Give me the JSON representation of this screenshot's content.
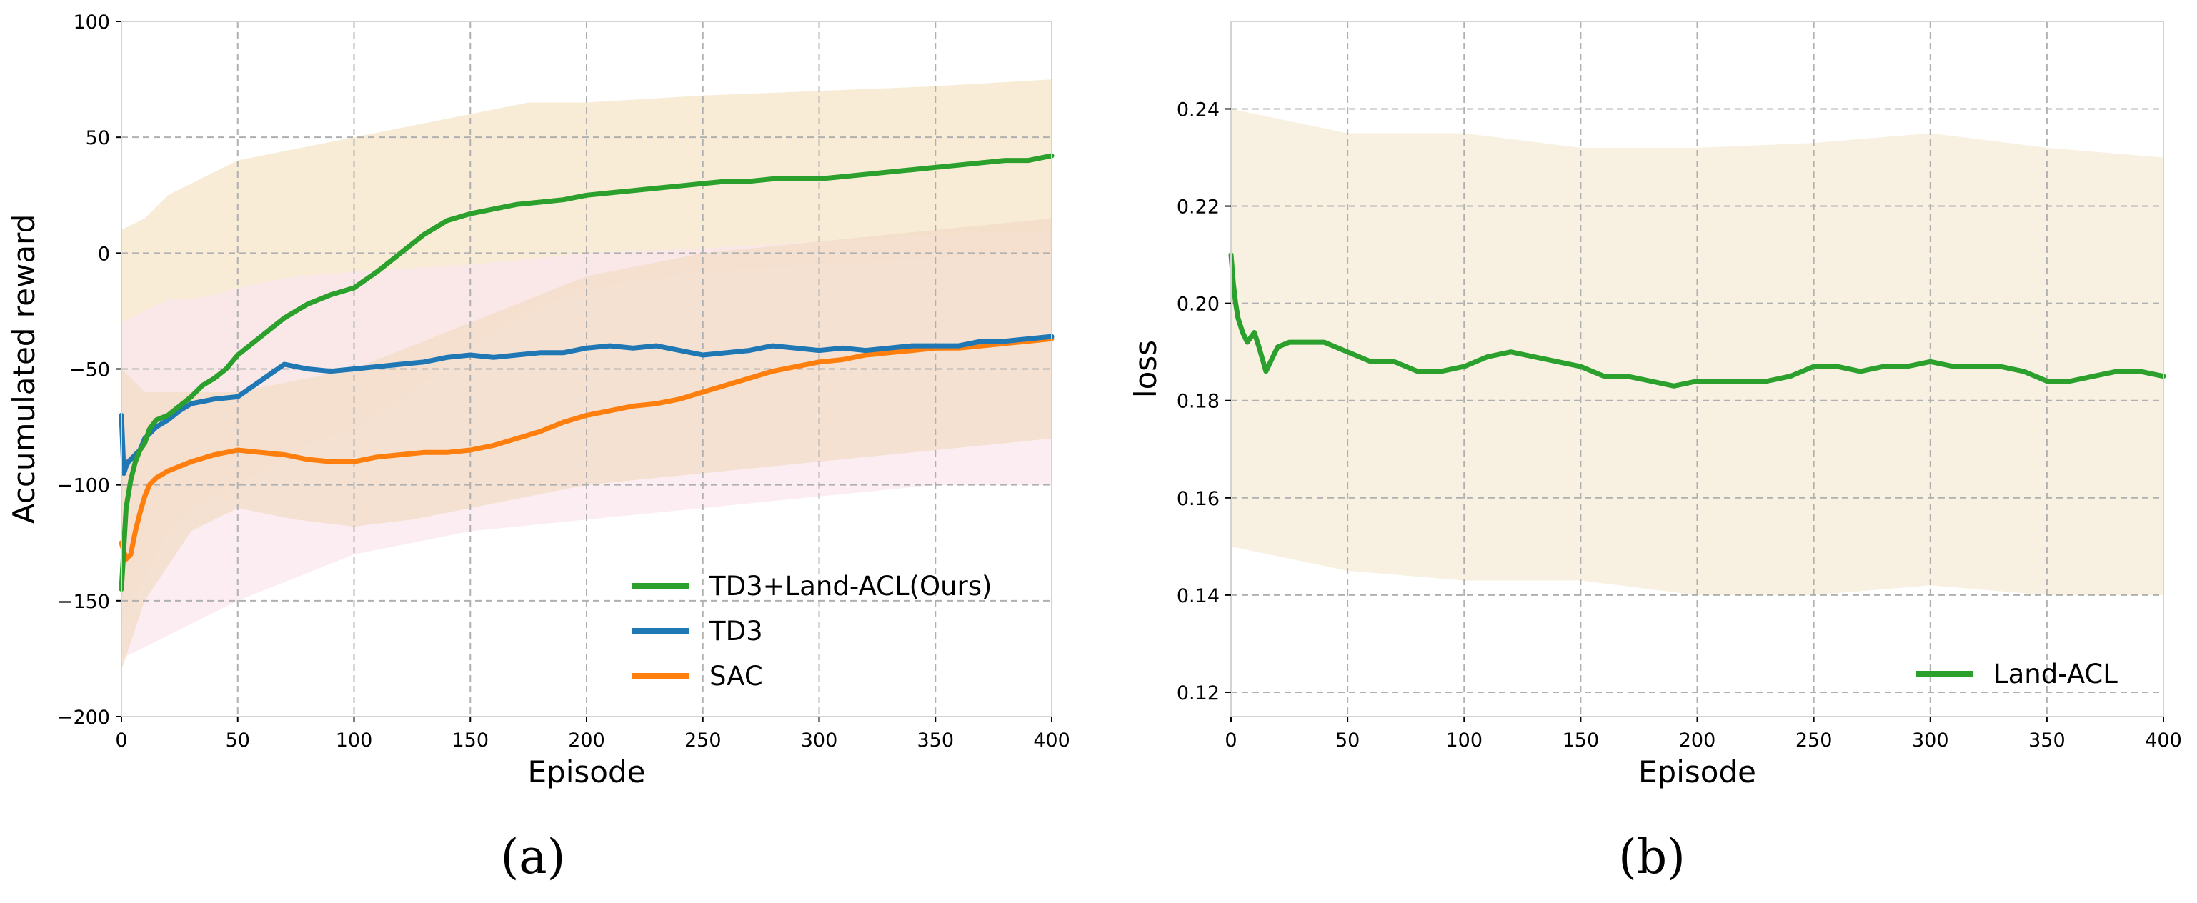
{
  "chart_data": [
    {
      "panel": "(a)",
      "type": "line",
      "title": "",
      "xlabel": "Episode",
      "ylabel": "Accumulated reward",
      "xlim": [
        0,
        400
      ],
      "ylim": [
        -200,
        100
      ],
      "xticks": [
        0,
        50,
        100,
        150,
        200,
        250,
        300,
        350,
        400
      ],
      "xtick_labels": [
        "0",
        "50",
        "100",
        "150",
        "200",
        "250",
        "300",
        "350",
        "400"
      ],
      "yticks": [
        -200,
        -150,
        -100,
        -50,
        0,
        50,
        100
      ],
      "ytick_labels": [
        "−200",
        "−150",
        "−100",
        "−50",
        "0",
        "50",
        "100"
      ],
      "grid": true,
      "legend_position": "lower-right",
      "series": [
        {
          "name": "TD3+Land-ACL(Ours)",
          "color": "#2ca02c",
          "band_color": "#f5e6c8",
          "band_upper_x": [
            0,
            10,
            20,
            30,
            40,
            50,
            75,
            100,
            125,
            150,
            175,
            200,
            250,
            300,
            350,
            400
          ],
          "band_upper_y": [
            10,
            15,
            25,
            30,
            35,
            40,
            45,
            50,
            55,
            60,
            65,
            65,
            68,
            70,
            72,
            75
          ],
          "band_lower_x": [
            0,
            10,
            20,
            30,
            40,
            50,
            75,
            100,
            125,
            150,
            175,
            200,
            250,
            300,
            350,
            400
          ],
          "band_lower_y": [
            -160,
            -140,
            -120,
            -110,
            -105,
            -100,
            -85,
            -75,
            -60,
            -40,
            -25,
            -15,
            -8,
            -5,
            -2,
            0
          ],
          "x": [
            0,
            2,
            4,
            6,
            8,
            10,
            12,
            15,
            20,
            25,
            30,
            35,
            40,
            45,
            50,
            60,
            70,
            80,
            90,
            100,
            110,
            120,
            130,
            140,
            150,
            160,
            170,
            180,
            190,
            200,
            210,
            220,
            230,
            240,
            250,
            260,
            270,
            280,
            290,
            300,
            310,
            320,
            330,
            340,
            350,
            360,
            370,
            380,
            390,
            400
          ],
          "y": [
            -145,
            -110,
            -98,
            -90,
            -85,
            -82,
            -76,
            -72,
            -70,
            -66,
            -62,
            -57,
            -54,
            -50,
            -44,
            -36,
            -28,
            -22,
            -18,
            -15,
            -8,
            0,
            8,
            14,
            17,
            19,
            21,
            22,
            23,
            25,
            26,
            27,
            28,
            29,
            30,
            31,
            31,
            32,
            32,
            32,
            33,
            34,
            35,
            36,
            37,
            38,
            39,
            40,
            40,
            42
          ]
        },
        {
          "name": "TD3",
          "color": "#1f77b4",
          "band_color": "#fbe7ef",
          "band_upper_x": [
            0,
            10,
            20,
            30,
            40,
            50,
            75,
            100,
            150,
            200,
            250,
            300,
            350,
            400
          ],
          "band_upper_y": [
            -30,
            -25,
            -20,
            -20,
            -18,
            -15,
            -10,
            -8,
            -5,
            0,
            2,
            5,
            8,
            10
          ],
          "band_lower_x": [
            0,
            10,
            20,
            30,
            40,
            50,
            75,
            100,
            150,
            200,
            250,
            300,
            350,
            400
          ],
          "band_lower_y": [
            -175,
            -170,
            -165,
            -160,
            -155,
            -150,
            -140,
            -130,
            -120,
            -115,
            -110,
            -105,
            -100,
            -100
          ],
          "x": [
            0,
            1,
            2,
            3,
            5,
            8,
            10,
            15,
            20,
            25,
            30,
            40,
            50,
            60,
            70,
            80,
            90,
            100,
            110,
            120,
            130,
            140,
            150,
            160,
            170,
            180,
            190,
            200,
            210,
            220,
            230,
            240,
            250,
            260,
            270,
            280,
            290,
            300,
            310,
            320,
            330,
            340,
            350,
            360,
            370,
            380,
            390,
            400
          ],
          "y": [
            -70,
            -95,
            -92,
            -90,
            -88,
            -85,
            -80,
            -75,
            -72,
            -68,
            -65,
            -63,
            -62,
            -55,
            -48,
            -50,
            -51,
            -50,
            -49,
            -48,
            -47,
            -45,
            -44,
            -45,
            -44,
            -43,
            -43,
            -41,
            -40,
            -41,
            -40,
            -42,
            -44,
            -43,
            -42,
            -40,
            -41,
            -42,
            -41,
            -42,
            -41,
            -40,
            -40,
            -40,
            -38,
            -38,
            -37,
            -36
          ]
        },
        {
          "name": "SAC",
          "color": "#ff7f0e",
          "band_color": "#f3dcc6",
          "band_upper_x": [
            0,
            10,
            20,
            30,
            40,
            50,
            75,
            100,
            125,
            150,
            175,
            200,
            250,
            300,
            350,
            400
          ],
          "band_upper_y": [
            -50,
            -60,
            -60,
            -60,
            -60,
            -60,
            -55,
            -50,
            -40,
            -30,
            -20,
            -10,
            0,
            5,
            10,
            15
          ],
          "band_lower_x": [
            0,
            10,
            20,
            30,
            40,
            50,
            75,
            100,
            125,
            150,
            175,
            200,
            250,
            300,
            350,
            400
          ],
          "band_lower_y": [
            -180,
            -150,
            -135,
            -120,
            -115,
            -110,
            -115,
            -118,
            -115,
            -110,
            -105,
            -100,
            -95,
            -90,
            -85,
            -80
          ],
          "x": [
            0,
            2,
            4,
            6,
            8,
            10,
            12,
            15,
            20,
            25,
            30,
            40,
            50,
            60,
            70,
            80,
            90,
            100,
            110,
            120,
            130,
            140,
            150,
            160,
            170,
            180,
            190,
            200,
            210,
            220,
            230,
            240,
            250,
            260,
            270,
            280,
            290,
            300,
            310,
            320,
            330,
            340,
            350,
            360,
            370,
            380,
            390,
            400
          ],
          "y": [
            -125,
            -132,
            -130,
            -120,
            -112,
            -105,
            -100,
            -97,
            -94,
            -92,
            -90,
            -87,
            -85,
            -86,
            -87,
            -89,
            -90,
            -90,
            -88,
            -87,
            -86,
            -86,
            -85,
            -83,
            -80,
            -77,
            -73,
            -70,
            -68,
            -66,
            -65,
            -63,
            -60,
            -57,
            -54,
            -51,
            -49,
            -47,
            -46,
            -44,
            -43,
            -42,
            -41,
            -41,
            -40,
            -39,
            -38,
            -37
          ]
        }
      ]
    },
    {
      "panel": "(b)",
      "type": "line",
      "title": "",
      "xlabel": "Episode",
      "ylabel": "loss",
      "xlim": [
        0,
        400
      ],
      "ylim": [
        0.115,
        0.258
      ],
      "xticks": [
        0,
        50,
        100,
        150,
        200,
        250,
        300,
        350,
        400
      ],
      "xtick_labels": [
        "0",
        "50",
        "100",
        "150",
        "200",
        "250",
        "300",
        "350",
        "400"
      ],
      "yticks": [
        0.12,
        0.14,
        0.16,
        0.18,
        0.2,
        0.22,
        0.24
      ],
      "ytick_labels": [
        "0.12",
        "0.14",
        "0.16",
        "0.18",
        "0.20",
        "0.22",
        "0.24"
      ],
      "grid": true,
      "legend_position": "lower-right",
      "series": [
        {
          "name": "Land-ACL",
          "color": "#2ca02c",
          "band_color": "#f5ecd8",
          "band_upper_x": [
            0,
            50,
            100,
            150,
            200,
            250,
            300,
            350,
            400
          ],
          "band_upper_y": [
            0.24,
            0.235,
            0.235,
            0.232,
            0.232,
            0.233,
            0.235,
            0.232,
            0.23
          ],
          "band_lower_x": [
            0,
            50,
            100,
            150,
            200,
            250,
            300,
            350,
            400
          ],
          "band_lower_y": [
            0.15,
            0.145,
            0.143,
            0.143,
            0.14,
            0.14,
            0.142,
            0.14,
            0.14
          ],
          "x": [
            0,
            1,
            2,
            3,
            5,
            7,
            10,
            12,
            15,
            18,
            20,
            25,
            30,
            40,
            50,
            60,
            70,
            80,
            90,
            100,
            110,
            120,
            130,
            140,
            150,
            160,
            170,
            180,
            190,
            200,
            210,
            220,
            230,
            240,
            250,
            260,
            270,
            280,
            290,
            300,
            310,
            320,
            330,
            340,
            350,
            360,
            370,
            380,
            390,
            400
          ],
          "y": [
            0.21,
            0.204,
            0.2,
            0.197,
            0.194,
            0.192,
            0.194,
            0.191,
            0.186,
            0.189,
            0.191,
            0.192,
            0.192,
            0.192,
            0.19,
            0.188,
            0.188,
            0.186,
            0.186,
            0.187,
            0.189,
            0.19,
            0.189,
            0.188,
            0.187,
            0.185,
            0.185,
            0.184,
            0.183,
            0.184,
            0.184,
            0.184,
            0.184,
            0.185,
            0.187,
            0.187,
            0.186,
            0.187,
            0.187,
            0.188,
            0.187,
            0.187,
            0.187,
            0.186,
            0.184,
            0.184,
            0.185,
            0.186,
            0.186,
            0.185
          ]
        }
      ]
    }
  ]
}
